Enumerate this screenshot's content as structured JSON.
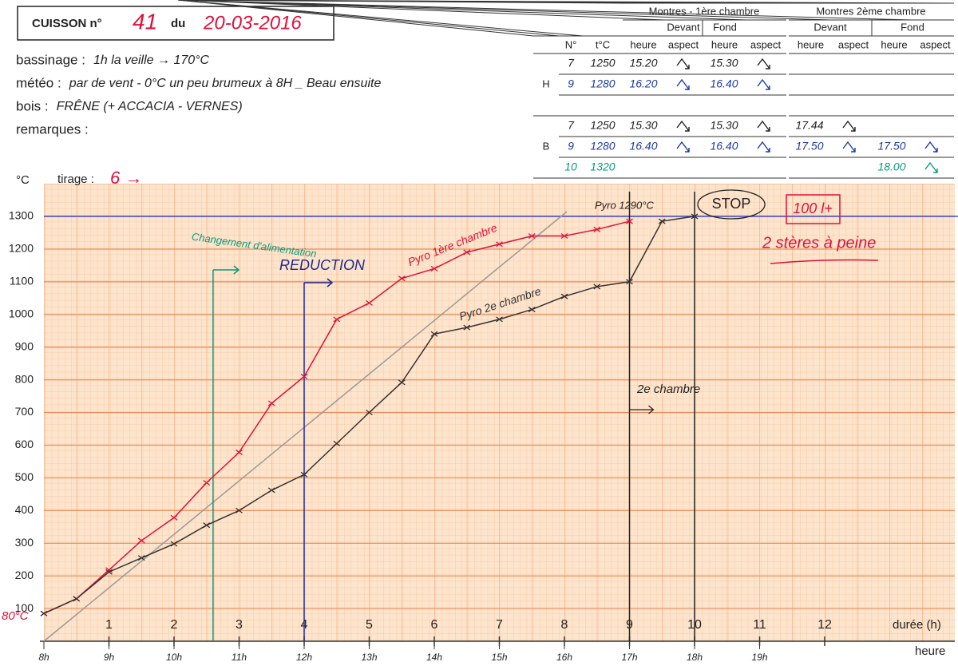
{
  "header": {
    "label": "CUISSON n°",
    "number": "41",
    "du": "du",
    "date": "20-03-2016"
  },
  "info": [
    {
      "label": "bassinage :",
      "value": "1h la veille → 170°C"
    },
    {
      "label": "météo :",
      "value": "par de vent - 0°C un peu brumeux à 8H _ Beau ensuite"
    },
    {
      "label": "bois :",
      "value": "FRÊNE (+ ACCACIA - VERNES)"
    },
    {
      "label": "remarques :"
    }
  ],
  "table": {
    "groups": [
      "Montres - 1ère chambre",
      "Montres 2ème chambre"
    ],
    "positions": [
      "Devant",
      "Fond",
      "Devant",
      "Fond"
    ],
    "columns": [
      "N°",
      "t°C",
      "heure",
      "aspect",
      "heure",
      "aspect",
      "heure",
      "aspect",
      "heure",
      "aspect"
    ],
    "sections": [
      {
        "label": "H",
        "rows": [
          {
            "n": "7",
            "t": "1250",
            "times": [
              "15.20",
              "15.30",
              null,
              null
            ]
          },
          {
            "n": "9",
            "t": "1280",
            "times": [
              "16.20",
              "16.40",
              null,
              null
            ]
          }
        ]
      },
      {
        "label": "B",
        "rows": [
          {
            "n": "7",
            "t": "1250",
            "times": [
              "15.30",
              "15.30",
              "17.44",
              null
            ]
          },
          {
            "n": "9",
            "t": "1280",
            "times": [
              "16.40",
              "16.40",
              "17.50",
              "17.50"
            ]
          },
          {
            "n": "10",
            "t": "1320",
            "times": [
              null,
              null,
              null,
              "18.00"
            ]
          }
        ]
      }
    ]
  },
  "chart_data": {
    "type": "line",
    "y_label": "°C",
    "tirage_label": "tirage :",
    "tirage": "6 →",
    "x_label": "durée (h)",
    "x2_label": "heure",
    "start_label": "80°C",
    "x": [
      0,
      0.5,
      1,
      1.5,
      2,
      2.5,
      3,
      3.5,
      4,
      4.5,
      5,
      5.5,
      6,
      6.5,
      7,
      7.5,
      8,
      8.5,
      9,
      9.5,
      10
    ],
    "series": [
      {
        "name": "Pyro 1ère chambre",
        "color": "#e0103a",
        "values": [
          85,
          130,
          218,
          308,
          378,
          485,
          578,
          728,
          810,
          985,
          1035,
          1110,
          1140,
          1190,
          1215,
          1240,
          1240,
          1260,
          1285,
          null,
          null
        ]
      },
      {
        "name": "Pyro 2e chambre",
        "color": "#333333",
        "values": [
          85,
          130,
          212,
          255,
          298,
          355,
          400,
          462,
          510,
          605,
          700,
          792,
          940,
          960,
          985,
          1015,
          1055,
          1085,
          1100,
          1285,
          1300
        ]
      }
    ],
    "xlim": [
      0,
      14
    ],
    "ylim": [
      0,
      1400
    ],
    "xticks": [
      1,
      2,
      3,
      4,
      5,
      6,
      7,
      8,
      9,
      10,
      11,
      12
    ],
    "x2ticks": [
      {
        "value": 0,
        "label": "8h"
      },
      {
        "value": 1,
        "label": "9h"
      },
      {
        "value": 2,
        "label": "10h"
      },
      {
        "value": 3,
        "label": "11h"
      },
      {
        "value": 4,
        "label": "12h"
      },
      {
        "value": 5,
        "label": "13h"
      },
      {
        "value": 6,
        "label": "14h"
      },
      {
        "value": 7,
        "label": "15h"
      },
      {
        "value": 8,
        "label": "16h"
      },
      {
        "value": 9,
        "label": "17h"
      },
      {
        "value": 10,
        "label": "18h"
      },
      {
        "value": 11,
        "label": "19h"
      }
    ],
    "yticks": [
      100,
      200,
      300,
      400,
      500,
      600,
      700,
      800,
      900,
      1000,
      1100,
      1200,
      1300
    ],
    "annotations": [
      {
        "text": "Changement d'alimentation",
        "x": 2.6,
        "color": "#0a9a7a"
      },
      {
        "text": "REDUCTION",
        "x": 4,
        "color": "#1c2a8c"
      },
      {
        "text": "2e chambre",
        "x": 9,
        "color": "#222222"
      },
      {
        "text": "STOP",
        "x": 10,
        "color": "#222222"
      }
    ],
    "notes": [
      "Pyro 1290°C",
      "100 l+",
      "2 stères à peine"
    ]
  }
}
